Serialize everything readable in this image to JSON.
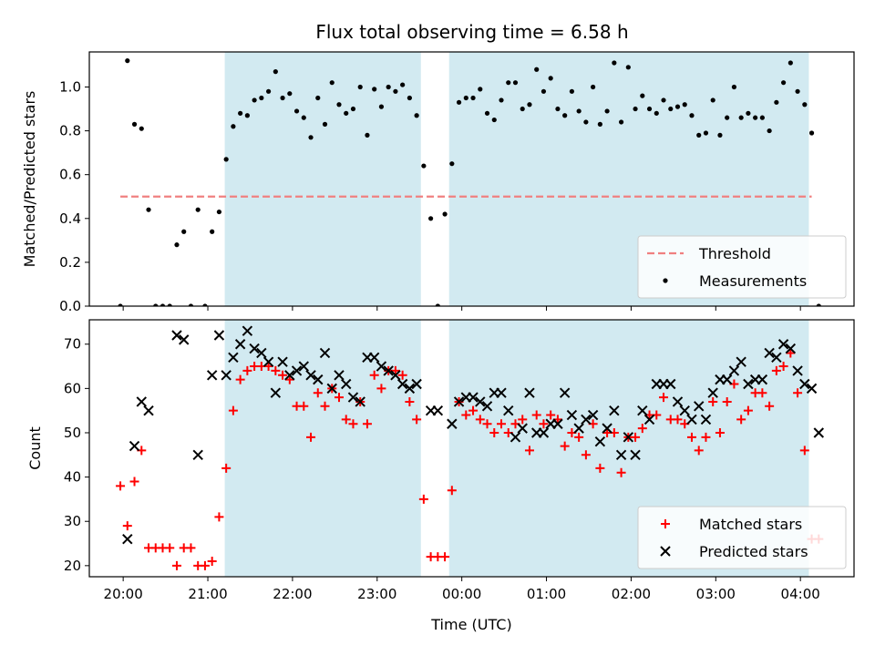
{
  "title": "Flux total observing time = 6.58 h",
  "colors": {
    "band": "#add8e6",
    "threshold": "#f08080",
    "matched": "#ff0000",
    "predicted": "#000000",
    "measurement": "#000000"
  },
  "chart_data": [
    {
      "type": "scatter",
      "ylabel": "Matched/Predicted stars",
      "ylim": [
        0,
        1.16
      ],
      "yticks": [
        "0.0",
        "0.2",
        "0.4",
        "0.6",
        "0.8",
        "1.0"
      ],
      "xlim": [
        "19:36",
        "04:38"
      ],
      "threshold": {
        "name": "Threshold",
        "value": 0.5,
        "x": [
          "19:58",
          "04:08"
        ]
      },
      "bands": [
        {
          "start": "21:12",
          "end": "23:31"
        },
        {
          "start": "23:51",
          "end": "04:06"
        }
      ],
      "legend": {
        "position": "lower right",
        "entries": [
          "Threshold",
          "Measurements"
        ]
      },
      "series": [
        {
          "name": "Measurements",
          "marker": "dot",
          "x": [
            "19:58",
            "20:03",
            "20:08",
            "20:13",
            "20:18",
            "20:23",
            "20:28",
            "20:33",
            "20:38",
            "20:43",
            "20:48",
            "20:53",
            "20:58",
            "21:03",
            "21:08",
            "21:13",
            "21:18",
            "21:23",
            "21:28",
            "21:33",
            "21:38",
            "21:43",
            "21:48",
            "21:53",
            "21:58",
            "22:03",
            "22:08",
            "22:13",
            "22:18",
            "22:23",
            "22:28",
            "22:33",
            "22:38",
            "22:43",
            "22:48",
            "22:53",
            "22:58",
            "23:03",
            "23:08",
            "23:13",
            "23:18",
            "23:23",
            "23:28",
            "23:33",
            "23:38",
            "23:43",
            "23:48",
            "23:53",
            "23:58",
            "00:03",
            "00:08",
            "00:13",
            "00:18",
            "00:23",
            "00:28",
            "00:33",
            "00:38",
            "00:43",
            "00:48",
            "00:53",
            "00:58",
            "01:03",
            "01:08",
            "01:13",
            "01:18",
            "01:23",
            "01:28",
            "01:33",
            "01:38",
            "01:43",
            "01:48",
            "01:53",
            "01:58",
            "02:03",
            "02:08",
            "02:13",
            "02:18",
            "02:23",
            "02:28",
            "02:33",
            "02:38",
            "02:43",
            "02:48",
            "02:53",
            "02:58",
            "03:03",
            "03:08",
            "03:13",
            "03:18",
            "03:23",
            "03:28",
            "03:33",
            "03:38",
            "03:43",
            "03:48",
            "03:53",
            "03:58",
            "04:03",
            "04:08",
            "04:13"
          ],
          "y": [
            0.0,
            1.12,
            0.83,
            0.81,
            0.44,
            0.0,
            0.0,
            0.0,
            0.28,
            0.34,
            0.0,
            0.44,
            0.0,
            0.34,
            0.43,
            0.67,
            0.82,
            0.88,
            0.87,
            0.94,
            0.95,
            0.98,
            1.07,
            0.95,
            0.97,
            0.89,
            0.86,
            0.77,
            0.95,
            0.83,
            1.02,
            0.92,
            0.88,
            0.9,
            1.0,
            0.78,
            0.99,
            0.91,
            1.0,
            0.98,
            1.01,
            0.95,
            0.87,
            0.64,
            0.4,
            0.0,
            0.42,
            0.65,
            0.93,
            0.95,
            0.95,
            0.99,
            0.88,
            0.85,
            0.94,
            1.02,
            1.02,
            0.9,
            0.92,
            1.08,
            0.98,
            1.04,
            0.9,
            0.87,
            0.98,
            0.89,
            0.84,
            1.0,
            0.83,
            0.89,
            1.11,
            0.84,
            1.09,
            0.9,
            0.96,
            0.9,
            0.88,
            0.94,
            0.9,
            0.91,
            0.92,
            0.87,
            0.78,
            0.79,
            0.94,
            0.78,
            0.86,
            1.0,
            0.86,
            0.88,
            0.86,
            0.86,
            0.8,
            0.93,
            1.02,
            1.11,
            0.98,
            0.92,
            0.79,
            0.0
          ]
        }
      ]
    },
    {
      "type": "scatter",
      "ylabel": "Count",
      "xlabel": "Time (UTC)",
      "ylim": [
        17.5,
        75.5
      ],
      "yticks": [
        "20",
        "30",
        "40",
        "50",
        "60",
        "70"
      ],
      "xlim": [
        "19:36",
        "04:38"
      ],
      "xticks": [
        "20:00",
        "21:00",
        "22:00",
        "23:00",
        "00:00",
        "01:00",
        "02:00",
        "03:00",
        "04:00"
      ],
      "bands": [
        {
          "start": "21:12",
          "end": "23:31"
        },
        {
          "start": "23:51",
          "end": "04:06"
        }
      ],
      "legend": {
        "position": "lower right",
        "entries": [
          "Matched stars",
          "Predicted stars"
        ]
      },
      "series": [
        {
          "name": "Matched stars",
          "marker": "plus",
          "x": [
            "19:58",
            "20:03",
            "20:08",
            "20:13",
            "20:18",
            "20:23",
            "20:28",
            "20:33",
            "20:38",
            "20:43",
            "20:48",
            "20:53",
            "20:58",
            "21:03",
            "21:08",
            "21:13",
            "21:18",
            "21:23",
            "21:28",
            "21:33",
            "21:38",
            "21:43",
            "21:48",
            "21:53",
            "21:58",
            "22:03",
            "22:08",
            "22:13",
            "22:18",
            "22:23",
            "22:28",
            "22:33",
            "22:38",
            "22:43",
            "22:48",
            "22:53",
            "22:58",
            "23:03",
            "23:08",
            "23:13",
            "23:18",
            "23:23",
            "23:28",
            "23:33",
            "23:38",
            "23:43",
            "23:48",
            "23:53",
            "23:58",
            "00:03",
            "00:08",
            "00:13",
            "00:18",
            "00:23",
            "00:28",
            "00:33",
            "00:38",
            "00:43",
            "00:48",
            "00:53",
            "00:58",
            "01:03",
            "01:08",
            "01:13",
            "01:18",
            "01:23",
            "01:28",
            "01:33",
            "01:38",
            "01:43",
            "01:48",
            "01:53",
            "01:58",
            "02:03",
            "02:08",
            "02:13",
            "02:18",
            "02:23",
            "02:28",
            "02:33",
            "02:38",
            "02:43",
            "02:48",
            "02:53",
            "02:58",
            "03:03",
            "03:08",
            "03:13",
            "03:18",
            "03:23",
            "03:28",
            "03:33",
            "03:38",
            "03:43",
            "03:48",
            "03:53",
            "03:58",
            "04:03",
            "04:08",
            "04:13"
          ],
          "y": [
            38,
            29,
            39,
            46,
            24,
            24,
            24,
            24,
            20,
            24,
            24,
            20,
            20,
            21,
            31,
            42,
            55,
            62,
            64,
            65,
            65,
            65,
            64,
            63,
            62,
            56,
            56,
            49,
            59,
            56,
            60,
            58,
            53,
            52,
            57,
            52,
            63,
            60,
            64,
            64,
            63,
            57,
            53,
            35,
            22,
            22,
            22,
            37,
            57,
            54,
            55,
            53,
            52,
            50,
            52,
            50,
            52,
            53,
            46,
            54,
            52,
            54,
            53,
            47,
            50,
            49,
            45,
            52,
            42,
            50,
            50,
            41,
            49,
            49,
            51,
            54,
            54,
            58,
            53,
            53,
            52,
            49,
            46,
            49,
            57,
            50,
            57,
            61,
            53,
            55,
            59,
            59,
            56,
            64,
            65,
            68,
            59,
            46,
            26,
            26
          ]
        },
        {
          "name": "Predicted stars",
          "marker": "x",
          "x": [
            "20:03",
            "20:08",
            "20:13",
            "20:18",
            "20:38",
            "20:43",
            "20:53",
            "21:03",
            "21:08",
            "21:13",
            "21:18",
            "21:23",
            "21:28",
            "21:33",
            "21:38",
            "21:43",
            "21:48",
            "21:53",
            "21:58",
            "22:03",
            "22:08",
            "22:13",
            "22:18",
            "22:23",
            "22:28",
            "22:33",
            "22:38",
            "22:43",
            "22:48",
            "22:53",
            "22:58",
            "23:03",
            "23:08",
            "23:13",
            "23:18",
            "23:23",
            "23:28",
            "23:38",
            "23:43",
            "23:53",
            "23:58",
            "00:03",
            "00:08",
            "00:13",
            "00:18",
            "00:23",
            "00:28",
            "00:33",
            "00:38",
            "00:43",
            "00:48",
            "00:53",
            "00:58",
            "01:03",
            "01:08",
            "01:13",
            "01:18",
            "01:23",
            "01:28",
            "01:33",
            "01:38",
            "01:43",
            "01:48",
            "01:53",
            "01:58",
            "02:03",
            "02:08",
            "02:13",
            "02:18",
            "02:23",
            "02:28",
            "02:33",
            "02:38",
            "02:43",
            "02:48",
            "02:53",
            "02:58",
            "03:03",
            "03:08",
            "03:13",
            "03:18",
            "03:23",
            "03:28",
            "03:33",
            "03:38",
            "03:43",
            "03:48",
            "03:53",
            "03:58",
            "04:03",
            "04:08",
            "04:13"
          ],
          "y": [
            26,
            47,
            57,
            55,
            72,
            71,
            45,
            63,
            72,
            63,
            67,
            70,
            73,
            69,
            68,
            66,
            59,
            66,
            63,
            64,
            65,
            63,
            62,
            68,
            60,
            63,
            61,
            58,
            57,
            67,
            67,
            65,
            64,
            63,
            61,
            60,
            61,
            55,
            55,
            52,
            57,
            58,
            58,
            57,
            56,
            59,
            59,
            55,
            49,
            51,
            59,
            50,
            50,
            52,
            52,
            59,
            54,
            51,
            53,
            54,
            48,
            51,
            55,
            45,
            49,
            45,
            55,
            53,
            61,
            61,
            61,
            57,
            55,
            53,
            56,
            53,
            59,
            62,
            62,
            64,
            66,
            61,
            62,
            62,
            68,
            67,
            70,
            69,
            64,
            61,
            60,
            50
          ]
        }
      ]
    }
  ]
}
